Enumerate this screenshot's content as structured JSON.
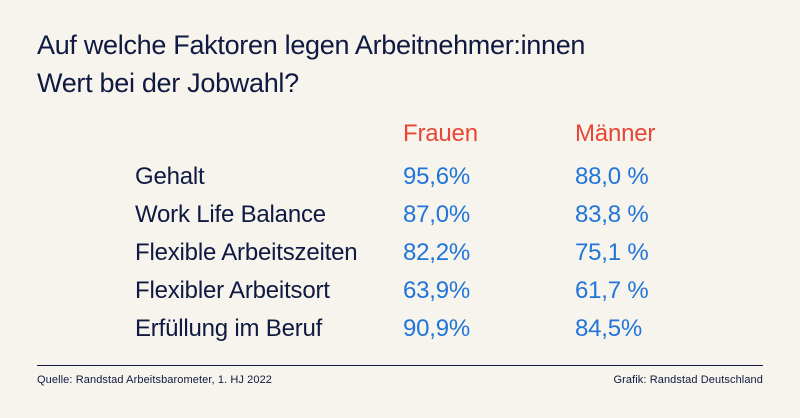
{
  "title": {
    "line1": "Auf welche Faktoren legen Arbeitnehmer:innen",
    "line2": "Wert bei der Jobwahl?",
    "full": "Auf welche Faktoren legen Arbeitnehmer:innen Wert bei der Jobwahl?"
  },
  "table": {
    "columns": [
      "Frauen",
      "Männer"
    ],
    "rows": [
      {
        "label": "Gehalt",
        "frauen": "95,6%",
        "maenner": "88,0 %"
      },
      {
        "label": "Work Life Balance",
        "frauen": "87,0%",
        "maenner": "83,8 %"
      },
      {
        "label": "Flexible Arbeitszeiten",
        "frauen": "82,2%",
        "maenner": "75,1 %"
      },
      {
        "label": "Flexibler Arbeitsort",
        "frauen": "63,9%",
        "maenner": "61,7 %"
      },
      {
        "label": "Erfüllung im Beruf",
        "frauen": "90,9%",
        "maenner": "84,5%"
      }
    ]
  },
  "footer": {
    "source": "Quelle: Randstad Arbeitsbarometer, 1. HJ 2022",
    "credit": "Grafik: Randstad Deutschland"
  },
  "colors": {
    "background": "#f6f4ec",
    "navy": "#0f1941",
    "blue": "#2175d9",
    "red": "#e74536"
  },
  "chart_data": {
    "type": "table",
    "title": "Auf welche Faktoren legen Arbeitnehmer:innen Wert bei der Jobwahl?",
    "categories": [
      "Gehalt",
      "Work Life Balance",
      "Flexible Arbeitszeiten",
      "Flexibler Arbeitsort",
      "Erfüllung im Beruf"
    ],
    "series": [
      {
        "name": "Frauen",
        "values": [
          95.6,
          87.0,
          82.2,
          63.9,
          90.9
        ]
      },
      {
        "name": "Männer",
        "values": [
          88.0,
          83.8,
          75.1,
          61.7,
          84.5
        ]
      }
    ],
    "unit": "%",
    "source": "Randstad Arbeitsbarometer, 1. HJ 2022"
  }
}
